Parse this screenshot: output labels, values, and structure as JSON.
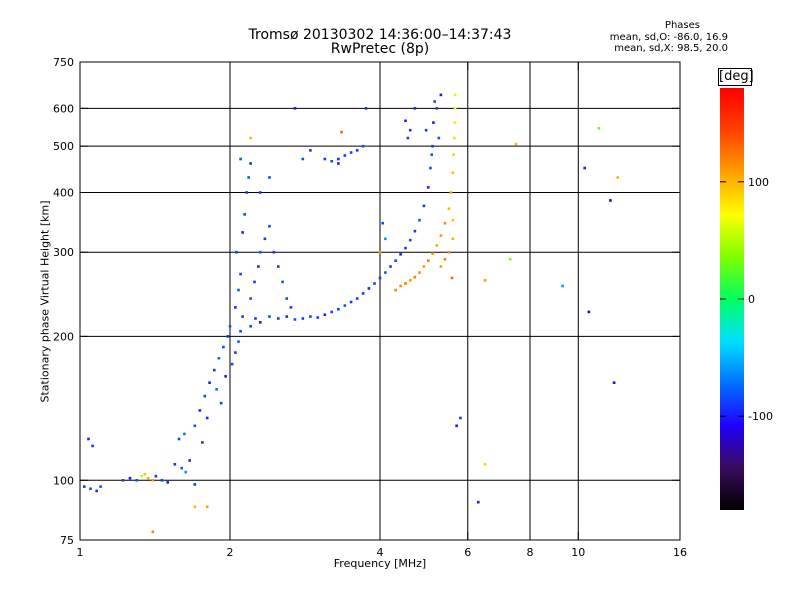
{
  "header": {
    "title": "Tromsø 20130302 14:36:00–14:37:43",
    "subtitle": "RwPretec (8p)"
  },
  "phase_info": {
    "heading": "Phases",
    "line_o": "mean, sd,O: -86.0, 16.9",
    "line_x": "mean, sd,X: 98.5, 20.0"
  },
  "colorbar": {
    "unit": "[deg]",
    "range": [
      -180,
      180
    ],
    "ticks": [
      {
        "value": 100,
        "label": "100"
      },
      {
        "value": 0,
        "label": "0"
      },
      {
        "value": -100,
        "label": "-100"
      }
    ],
    "colors": [
      "#000000",
      "#3a0a5a",
      "#2000ff",
      "#0070ff",
      "#00e0ff",
      "#00ff60",
      "#80ff00",
      "#ffff00",
      "#ffa000",
      "#ff4000",
      "#ff0000"
    ]
  },
  "chart_data": {
    "type": "scatter",
    "xlabel": "Frequency [MHz]",
    "ylabel": "Stationary phase Virtual Height [km]",
    "x_scale": "log",
    "y_scale": "log",
    "xlim": [
      1,
      16
    ],
    "ylim": [
      75,
      750
    ],
    "x_ticks": [
      {
        "value": 1,
        "label": "1"
      },
      {
        "value": 2,
        "label": "2"
      },
      {
        "value": 4,
        "label": "4"
      },
      {
        "value": 6,
        "label": "6"
      },
      {
        "value": 8,
        "label": "8"
      },
      {
        "value": 10,
        "label": "10"
      },
      {
        "value": 16,
        "label": "16"
      }
    ],
    "y_ticks": [
      {
        "value": 75,
        "label": "75"
      },
      {
        "value": 100,
        "label": "100"
      },
      {
        "value": 200,
        "label": "200"
      },
      {
        "value": 300,
        "label": "300"
      },
      {
        "value": 400,
        "label": "400"
      },
      {
        "value": 500,
        "label": "500"
      },
      {
        "value": 600,
        "label": "600"
      },
      {
        "value": 750,
        "label": "750"
      }
    ],
    "grid": true,
    "gridlines_x": [
      2,
      4,
      6,
      8,
      10
    ],
    "gridlines_y": [
      100,
      200,
      300,
      400,
      500,
      600
    ],
    "series": [
      {
        "color_by": "phase_deg",
        "points": [
          {
            "x": 1.02,
            "y": 97,
            "c": -90
          },
          {
            "x": 1.05,
            "y": 96,
            "c": -85
          },
          {
            "x": 1.08,
            "y": 95,
            "c": -95
          },
          {
            "x": 1.1,
            "y": 97,
            "c": -80
          },
          {
            "x": 1.04,
            "y": 122,
            "c": -100
          },
          {
            "x": 1.06,
            "y": 118,
            "c": -90
          },
          {
            "x": 1.22,
            "y": 100,
            "c": -90
          },
          {
            "x": 1.26,
            "y": 101,
            "c": -100
          },
          {
            "x": 1.3,
            "y": 100,
            "c": -80
          },
          {
            "x": 1.33,
            "y": 102,
            "c": 50
          },
          {
            "x": 1.37,
            "y": 101,
            "c": 100
          },
          {
            "x": 1.4,
            "y": 100,
            "c": 110
          },
          {
            "x": 1.42,
            "y": 102,
            "c": -90
          },
          {
            "x": 1.46,
            "y": 100,
            "c": -85
          },
          {
            "x": 1.5,
            "y": 99,
            "c": -100
          },
          {
            "x": 1.35,
            "y": 103,
            "c": 95
          },
          {
            "x": 1.55,
            "y": 108,
            "c": -90
          },
          {
            "x": 1.6,
            "y": 106,
            "c": -80
          },
          {
            "x": 1.63,
            "y": 104,
            "c": -60
          },
          {
            "x": 1.66,
            "y": 110,
            "c": -95
          },
          {
            "x": 1.7,
            "y": 98,
            "c": -90
          },
          {
            "x": 1.58,
            "y": 122,
            "c": -85
          },
          {
            "x": 1.62,
            "y": 125,
            "c": -70
          },
          {
            "x": 1.7,
            "y": 130,
            "c": -80
          },
          {
            "x": 1.74,
            "y": 140,
            "c": -95
          },
          {
            "x": 1.78,
            "y": 150,
            "c": -85
          },
          {
            "x": 1.82,
            "y": 160,
            "c": -100
          },
          {
            "x": 1.86,
            "y": 170,
            "c": -90
          },
          {
            "x": 1.9,
            "y": 180,
            "c": -75
          },
          {
            "x": 1.94,
            "y": 190,
            "c": -85
          },
          {
            "x": 1.98,
            "y": 200,
            "c": -95
          },
          {
            "x": 2.0,
            "y": 210,
            "c": -80
          },
          {
            "x": 1.92,
            "y": 145,
            "c": -90
          },
          {
            "x": 1.88,
            "y": 155,
            "c": -70
          },
          {
            "x": 1.96,
            "y": 165,
            "c": -100
          },
          {
            "x": 2.02,
            "y": 175,
            "c": -85
          },
          {
            "x": 2.05,
            "y": 185,
            "c": -90
          },
          {
            "x": 2.08,
            "y": 195,
            "c": -80
          },
          {
            "x": 1.8,
            "y": 135,
            "c": -95
          },
          {
            "x": 1.76,
            "y": 120,
            "c": -90
          },
          {
            "x": 2.1,
            "y": 205,
            "c": -85
          },
          {
            "x": 2.12,
            "y": 220,
            "c": -90
          },
          {
            "x": 2.05,
            "y": 230,
            "c": -95
          },
          {
            "x": 2.08,
            "y": 250,
            "c": -80
          },
          {
            "x": 2.1,
            "y": 270,
            "c": -85
          },
          {
            "x": 2.06,
            "y": 300,
            "c": -90
          },
          {
            "x": 2.12,
            "y": 330,
            "c": -100
          },
          {
            "x": 2.14,
            "y": 360,
            "c": -85
          },
          {
            "x": 2.16,
            "y": 400,
            "c": -90
          },
          {
            "x": 2.18,
            "y": 430,
            "c": -80
          },
          {
            "x": 2.2,
            "y": 460,
            "c": -95
          },
          {
            "x": 2.2,
            "y": 240,
            "c": -85
          },
          {
            "x": 2.24,
            "y": 260,
            "c": -90
          },
          {
            "x": 2.28,
            "y": 280,
            "c": -95
          },
          {
            "x": 2.3,
            "y": 300,
            "c": -80
          },
          {
            "x": 2.35,
            "y": 320,
            "c": -90
          },
          {
            "x": 2.4,
            "y": 340,
            "c": -85
          },
          {
            "x": 2.45,
            "y": 300,
            "c": -95
          },
          {
            "x": 2.5,
            "y": 280,
            "c": -90
          },
          {
            "x": 2.55,
            "y": 260,
            "c": -80
          },
          {
            "x": 2.6,
            "y": 240,
            "c": -85
          },
          {
            "x": 2.65,
            "y": 230,
            "c": -90
          },
          {
            "x": 2.2,
            "y": 210,
            "c": -85
          },
          {
            "x": 2.25,
            "y": 218,
            "c": -90
          },
          {
            "x": 2.3,
            "y": 214,
            "c": -100
          },
          {
            "x": 2.4,
            "y": 220,
            "c": -85
          },
          {
            "x": 2.5,
            "y": 218,
            "c": -90
          },
          {
            "x": 2.6,
            "y": 220,
            "c": -95
          },
          {
            "x": 2.7,
            "y": 217,
            "c": -80
          },
          {
            "x": 2.8,
            "y": 218,
            "c": -90
          },
          {
            "x": 2.9,
            "y": 220,
            "c": -85
          },
          {
            "x": 3.0,
            "y": 219,
            "c": -90
          },
          {
            "x": 3.1,
            "y": 222,
            "c": -95
          },
          {
            "x": 3.2,
            "y": 225,
            "c": -85
          },
          {
            "x": 3.3,
            "y": 228,
            "c": -90
          },
          {
            "x": 3.4,
            "y": 232,
            "c": -80
          },
          {
            "x": 3.5,
            "y": 236,
            "c": -90
          },
          {
            "x": 3.6,
            "y": 240,
            "c": -85
          },
          {
            "x": 3.7,
            "y": 246,
            "c": -90
          },
          {
            "x": 3.8,
            "y": 252,
            "c": -95
          },
          {
            "x": 3.9,
            "y": 258,
            "c": -85
          },
          {
            "x": 4.0,
            "y": 265,
            "c": -90
          },
          {
            "x": 4.1,
            "y": 272,
            "c": -80
          },
          {
            "x": 4.2,
            "y": 280,
            "c": -90
          },
          {
            "x": 4.3,
            "y": 288,
            "c": -85
          },
          {
            "x": 4.4,
            "y": 297,
            "c": -95
          },
          {
            "x": 4.5,
            "y": 306,
            "c": -90
          },
          {
            "x": 4.6,
            "y": 318,
            "c": -85
          },
          {
            "x": 4.7,
            "y": 332,
            "c": -90
          },
          {
            "x": 4.8,
            "y": 350,
            "c": -80
          },
          {
            "x": 4.9,
            "y": 375,
            "c": -90
          },
          {
            "x": 5.0,
            "y": 410,
            "c": -95
          },
          {
            "x": 5.05,
            "y": 450,
            "c": -85
          },
          {
            "x": 5.1,
            "y": 500,
            "c": -90
          },
          {
            "x": 5.12,
            "y": 560,
            "c": -100
          },
          {
            "x": 5.15,
            "y": 620,
            "c": -85
          },
          {
            "x": 4.95,
            "y": 540,
            "c": -90
          },
          {
            "x": 5.08,
            "y": 480,
            "c": -80
          },
          {
            "x": 4.7,
            "y": 600,
            "c": -95
          },
          {
            "x": 2.3,
            "y": 400,
            "c": -90
          },
          {
            "x": 2.4,
            "y": 430,
            "c": -85
          },
          {
            "x": 2.2,
            "y": 520,
            "c": 100
          },
          {
            "x": 2.1,
            "y": 470,
            "c": -80
          },
          {
            "x": 2.7,
            "y": 600,
            "c": -100
          },
          {
            "x": 2.8,
            "y": 470,
            "c": -85
          },
          {
            "x": 2.9,
            "y": 490,
            "c": -90
          },
          {
            "x": 3.1,
            "y": 470,
            "c": -90
          },
          {
            "x": 3.2,
            "y": 465,
            "c": -85
          },
          {
            "x": 3.3,
            "y": 470,
            "c": -95
          },
          {
            "x": 3.4,
            "y": 478,
            "c": -90
          },
          {
            "x": 3.5,
            "y": 485,
            "c": -85
          },
          {
            "x": 3.6,
            "y": 490,
            "c": -90
          },
          {
            "x": 3.7,
            "y": 500,
            "c": -80
          },
          {
            "x": 3.3,
            "y": 460,
            "c": -100
          },
          {
            "x": 3.75,
            "y": 600,
            "c": -95
          },
          {
            "x": 3.35,
            "y": 535,
            "c": 130
          },
          {
            "x": 4.0,
            "y": 300,
            "c": 110
          },
          {
            "x": 4.1,
            "y": 320,
            "c": -60
          },
          {
            "x": 4.05,
            "y": 345,
            "c": -85
          },
          {
            "x": 4.3,
            "y": 250,
            "c": 120
          },
          {
            "x": 4.4,
            "y": 255,
            "c": 115
          },
          {
            "x": 4.5,
            "y": 258,
            "c": 125
          },
          {
            "x": 4.6,
            "y": 262,
            "c": 110
          },
          {
            "x": 4.7,
            "y": 266,
            "c": 120
          },
          {
            "x": 4.8,
            "y": 272,
            "c": 115
          },
          {
            "x": 4.9,
            "y": 280,
            "c": 110
          },
          {
            "x": 5.0,
            "y": 288,
            "c": 120
          },
          {
            "x": 5.1,
            "y": 298,
            "c": 115
          },
          {
            "x": 5.2,
            "y": 310,
            "c": 105
          },
          {
            "x": 5.3,
            "y": 325,
            "c": 110
          },
          {
            "x": 5.4,
            "y": 345,
            "c": 115
          },
          {
            "x": 5.5,
            "y": 370,
            "c": 100
          },
          {
            "x": 5.55,
            "y": 400,
            "c": 105
          },
          {
            "x": 5.6,
            "y": 440,
            "c": 95
          },
          {
            "x": 5.62,
            "y": 480,
            "c": 90
          },
          {
            "x": 5.64,
            "y": 520,
            "c": 85
          },
          {
            "x": 5.65,
            "y": 560,
            "c": 80
          },
          {
            "x": 5.66,
            "y": 600,
            "c": 70
          },
          {
            "x": 5.66,
            "y": 640,
            "c": 60
          },
          {
            "x": 5.5,
            "y": 300,
            "c": 115
          },
          {
            "x": 5.4,
            "y": 290,
            "c": 120
          },
          {
            "x": 5.3,
            "y": 280,
            "c": 110
          },
          {
            "x": 5.6,
            "y": 320,
            "c": 100
          },
          {
            "x": 5.6,
            "y": 350,
            "c": 95
          },
          {
            "x": 5.58,
            "y": 265,
            "c": 130
          },
          {
            "x": 5.3,
            "y": 640,
            "c": -100
          },
          {
            "x": 5.2,
            "y": 600,
            "c": -90
          },
          {
            "x": 5.25,
            "y": 520,
            "c": -80
          },
          {
            "x": 4.6,
            "y": 540,
            "c": -90
          },
          {
            "x": 4.55,
            "y": 520,
            "c": -85
          },
          {
            "x": 4.5,
            "y": 565,
            "c": -95
          },
          {
            "x": 5.7,
            "y": 130,
            "c": -100
          },
          {
            "x": 5.8,
            "y": 135,
            "c": -90
          },
          {
            "x": 6.3,
            "y": 90,
            "c": -100
          },
          {
            "x": 6.5,
            "y": 108,
            "c": 90
          },
          {
            "x": 6.5,
            "y": 262,
            "c": 110
          },
          {
            "x": 7.3,
            "y": 290,
            "c": 40
          },
          {
            "x": 7.5,
            "y": 505,
            "c": 100
          },
          {
            "x": 9.3,
            "y": 255,
            "c": -60
          },
          {
            "x": 10.5,
            "y": 225,
            "c": -110
          },
          {
            "x": 10.3,
            "y": 450,
            "c": -100
          },
          {
            "x": 11.0,
            "y": 545,
            "c": 30
          },
          {
            "x": 12.0,
            "y": 430,
            "c": 100
          },
          {
            "x": 11.6,
            "y": 385,
            "c": -120
          },
          {
            "x": 11.8,
            "y": 160,
            "c": -110
          },
          {
            "x": 1.7,
            "y": 88,
            "c": 100
          },
          {
            "x": 1.8,
            "y": 88,
            "c": 110
          },
          {
            "x": 1.4,
            "y": 78,
            "c": 120
          }
        ]
      }
    ]
  }
}
